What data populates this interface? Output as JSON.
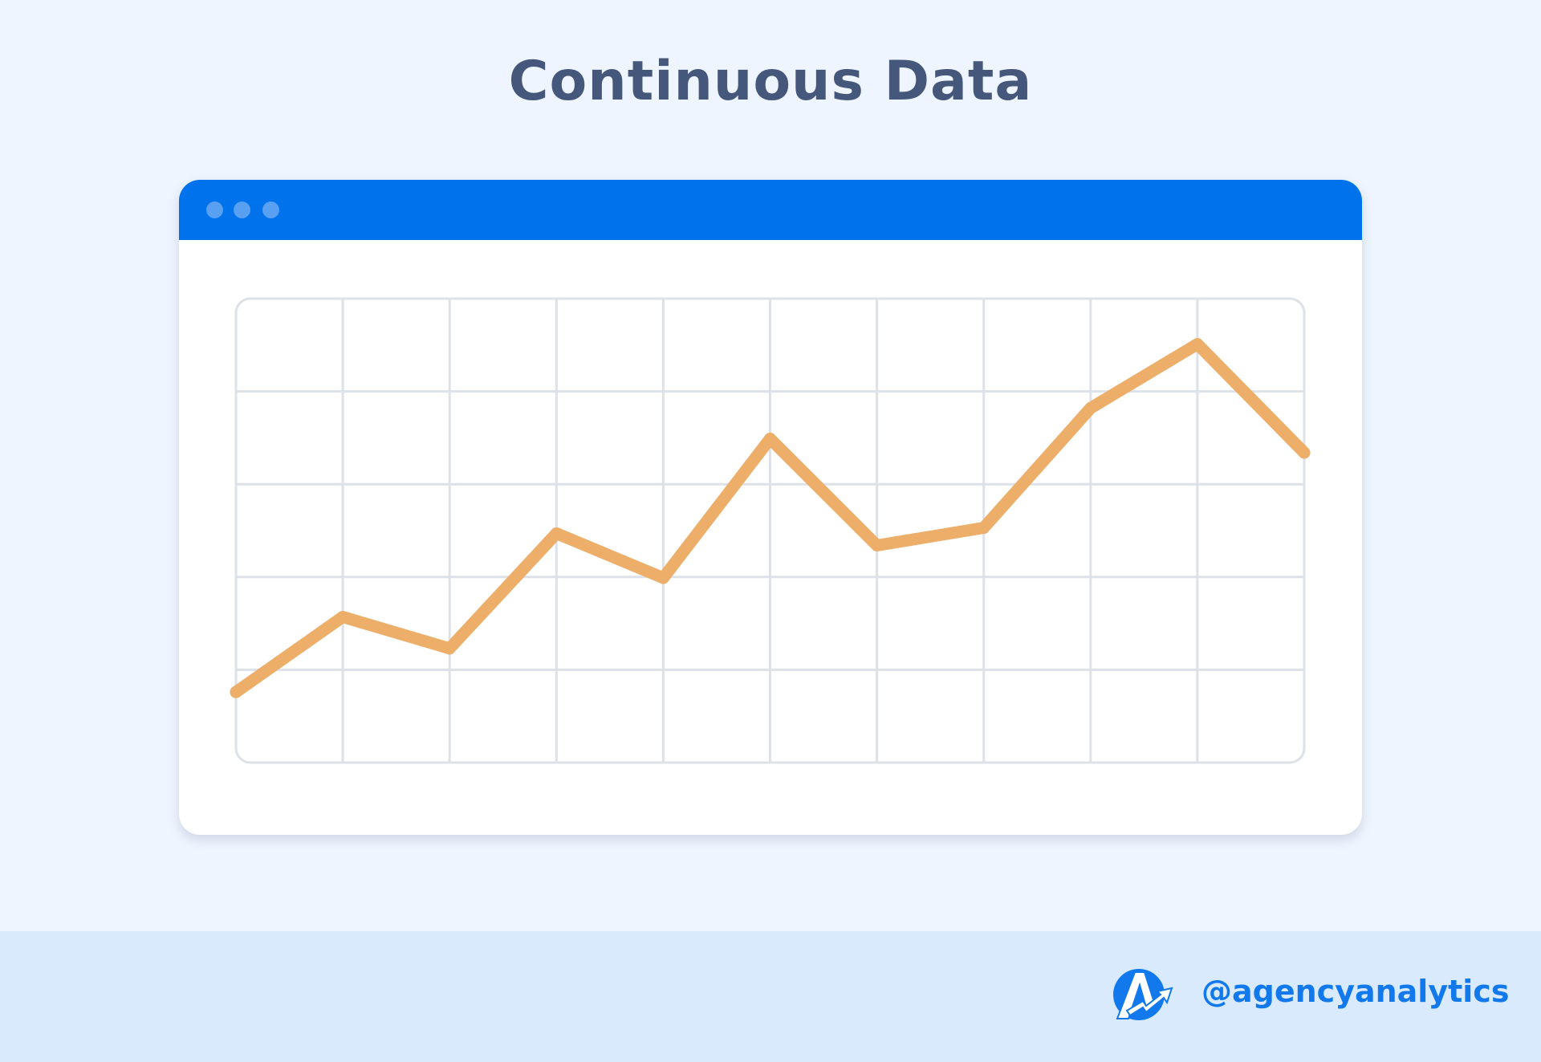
{
  "title": "Continuous Data",
  "window": {
    "header_color": "#0073ec",
    "dots": 3
  },
  "chart_data": {
    "type": "line",
    "title": "Continuous Data",
    "xlabel": "",
    "ylabel": "",
    "x": [
      0,
      1,
      2,
      3,
      4,
      5,
      6,
      7,
      8,
      9,
      10
    ],
    "series": [
      {
        "values": [
          0.76,
          1.57,
          1.23,
          2.47,
          1.99,
          3.49,
          2.34,
          2.53,
          3.82,
          4.51,
          3.34
        ],
        "color": "#edae6a"
      }
    ],
    "xlim": [
      0,
      10
    ],
    "ylim": [
      0,
      5
    ],
    "grid": true,
    "grid_columns": 10,
    "grid_rows": 5,
    "legend": "none"
  },
  "footer": {
    "handle": "@agencyanalytics",
    "brand_color": "#1279ec",
    "logo": "agencyanalytics-logo"
  }
}
